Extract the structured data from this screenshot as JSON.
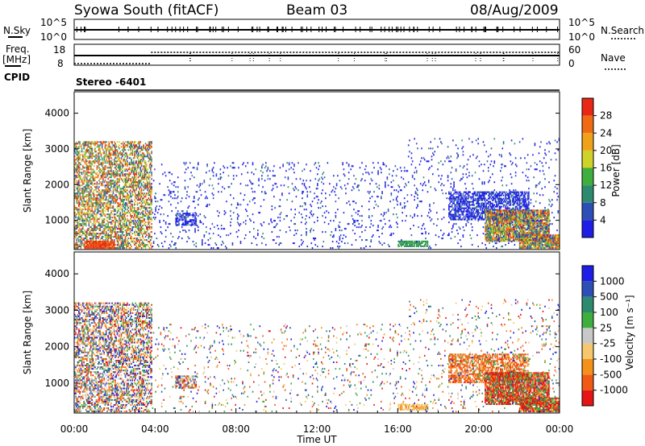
{
  "header": {
    "station": "Syowa South (fitACF)",
    "beam": "Beam 03",
    "date": "08/Aug/2009"
  },
  "strip_top": {
    "left_label": "N.Sky",
    "left_ticks": [
      "10^5",
      "10^0"
    ],
    "right_ticks": [
      "10^5",
      "10^0"
    ],
    "right_label": "N.Search"
  },
  "strip_freq": {
    "left_label_line1": "Freq.",
    "left_label_line2": "[MHz]",
    "left_ticks": [
      "18",
      "8"
    ],
    "right_ticks": [
      "60",
      "0"
    ],
    "right_label": "Nave"
  },
  "cpid_label": "CPID",
  "cpid_text": "Stereo -6401",
  "colors": {
    "power_scale": [
      "#1e1ee6",
      "#2d4fb5",
      "#2e8a6e",
      "#3fae3f",
      "#cfd22a",
      "#f0a11a",
      "#f06a14",
      "#e82814"
    ],
    "velocity_scale": [
      "#e61414",
      "#f05a14",
      "#f3911a",
      "#f5c870",
      "#c8c8c8",
      "#3fae3f",
      "#2e8a6e",
      "#2d4fb5",
      "#1e1ee6"
    ]
  },
  "chart_data": [
    {
      "type": "heatmap",
      "name": "power",
      "xlabel": "",
      "ylabel": "Slant Range [km]",
      "ylim": [
        180,
        4600
      ],
      "xlim_hours": [
        0,
        24
      ],
      "yticks": [
        "1000",
        "2000",
        "3000",
        "4000"
      ],
      "colorbar": {
        "label": "Power [dB]",
        "ticks": [
          "28",
          "24",
          "20",
          "16",
          "12",
          "8",
          "4"
        ],
        "range": [
          0,
          32
        ]
      },
      "regions": [
        {
          "h0": 0.0,
          "h1": 3.8,
          "r0": 200,
          "r1": 3200,
          "density": 0.55,
          "level": "mixed_high"
        },
        {
          "h0": 0.5,
          "h1": 2.0,
          "r0": 200,
          "r1": 400,
          "density": 0.9,
          "level": "red"
        },
        {
          "h0": 3.8,
          "h1": 16.5,
          "r0": 200,
          "r1": 2600,
          "density": 0.06,
          "level": "blue"
        },
        {
          "h0": 5.0,
          "h1": 6.0,
          "r0": 850,
          "r1": 1200,
          "density": 0.6,
          "level": "blue"
        },
        {
          "h0": 16.0,
          "h1": 17.5,
          "r0": 250,
          "r1": 400,
          "density": 0.8,
          "level": "green"
        },
        {
          "h0": 18.5,
          "h1": 22.5,
          "r0": 1000,
          "r1": 1800,
          "density": 0.6,
          "level": "blue"
        },
        {
          "h0": 20.3,
          "h1": 23.5,
          "r0": 400,
          "r1": 1300,
          "density": 0.85,
          "level": "mixed_high"
        },
        {
          "h0": 22.0,
          "h1": 24.0,
          "r0": 200,
          "r1": 600,
          "density": 0.85,
          "level": "mixed_high"
        },
        {
          "h0": 16.5,
          "h1": 24.0,
          "r0": 200,
          "r1": 3300,
          "density": 0.05,
          "level": "blue"
        }
      ]
    },
    {
      "type": "heatmap",
      "name": "velocity",
      "xlabel": "Time UT",
      "ylabel": "Slant Range [km]",
      "ylim": [
        180,
        4600
      ],
      "xlim_hours": [
        0,
        24
      ],
      "xticks": [
        "00:00",
        "04:00",
        "08:00",
        "12:00",
        "16:00",
        "20:00",
        "00:00"
      ],
      "yticks": [
        "1000",
        "2000",
        "3000",
        "4000"
      ],
      "colorbar": {
        "label": "Velocity [m s⁻¹]",
        "ticks": [
          "1000",
          "500",
          "100",
          "25",
          "-25",
          "-100",
          "-500",
          "-1000"
        ]
      },
      "regions": [
        {
          "h0": 0.0,
          "h1": 3.8,
          "r0": 200,
          "r1": 3200,
          "density": 0.5,
          "level": "mixed"
        },
        {
          "h0": 3.8,
          "h1": 16.5,
          "r0": 200,
          "r1": 2600,
          "density": 0.05,
          "level": "mixed"
        },
        {
          "h0": 5.0,
          "h1": 6.0,
          "r0": 850,
          "r1": 1200,
          "density": 0.6,
          "level": "mixed"
        },
        {
          "h0": 16.0,
          "h1": 17.5,
          "r0": 250,
          "r1": 400,
          "density": 0.8,
          "level": "yellow"
        },
        {
          "h0": 18.5,
          "h1": 22.5,
          "r0": 1000,
          "r1": 1800,
          "density": 0.6,
          "level": "orange"
        },
        {
          "h0": 20.3,
          "h1": 23.5,
          "r0": 400,
          "r1": 1300,
          "density": 0.85,
          "level": "red_green"
        },
        {
          "h0": 22.0,
          "h1": 24.0,
          "r0": 200,
          "r1": 600,
          "density": 0.85,
          "level": "red_green"
        },
        {
          "h0": 16.5,
          "h1": 24.0,
          "r0": 200,
          "r1": 3300,
          "density": 0.05,
          "level": "mixed"
        }
      ]
    }
  ]
}
